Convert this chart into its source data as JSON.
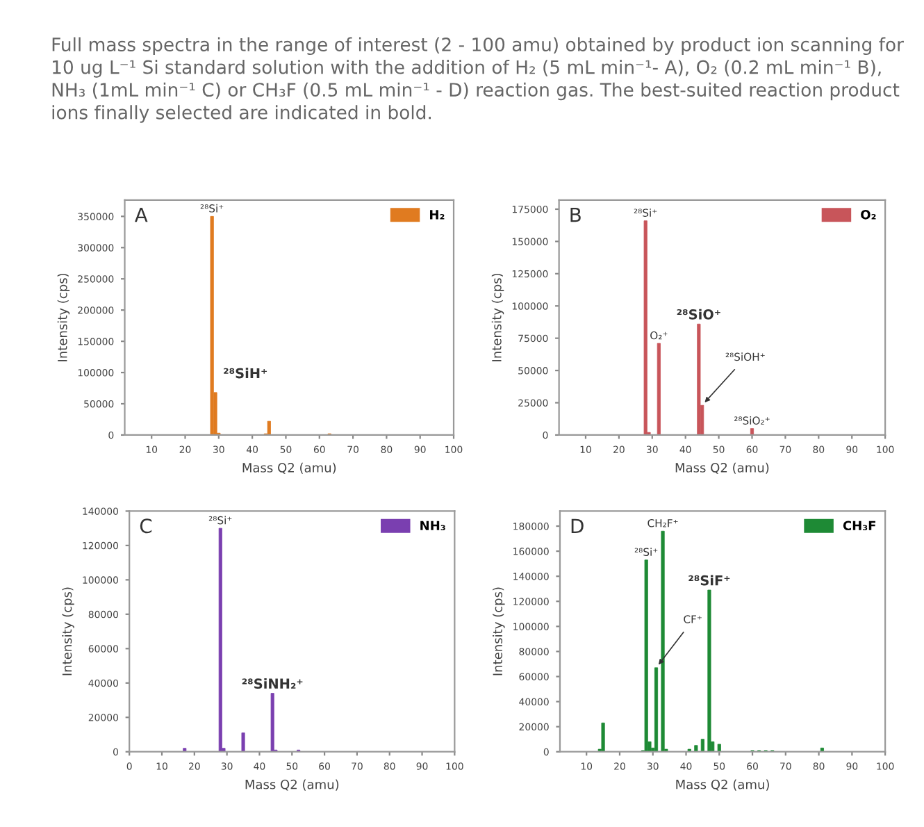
{
  "chart_data": [
    {
      "type": "bar",
      "title": "Full mass spectra in the range of interest (2 - 100 amu) obtained by product ion scanning for 10 ug L⁻¹ Si standard solution with the addition of H₂ (5 mL min⁻¹- A), O₂ (0.2 mL min⁻¹ B), NH₃ (1mL min⁻¹ C) or CH₃F (0.5 mL min⁻¹ - D) reaction gas. The best-suited reaction product ions finally selected are indicated in bold.",
      "x": [
        28,
        29,
        30,
        44,
        45,
        63
      ],
      "series": [
        {
          "name": "H₂",
          "color": "#e07b20",
          "values": [
            350000,
            68000,
            3000,
            2000,
            22000,
            2000
          ]
        }
      ],
      "xlim": [
        2,
        100
      ],
      "xticks": [
        10,
        20,
        30,
        40,
        50,
        60,
        70,
        80,
        90,
        100
      ],
      "ylim": [
        0,
        376000
      ],
      "yticks": [
        0,
        50000,
        100000,
        150000,
        200000,
        250000,
        300000,
        350000
      ],
      "xlabel": "Mass Q2 (amu)",
      "ylabel": "Intensity (cps)",
      "legend": "top right",
      "annotations": [
        "A",
        {
          "text": "²⁸Si⁺",
          "x": 28,
          "y": 350000
        },
        {
          "text": "²⁸SiH⁺",
          "x": 29,
          "y": 68000
        }
      ]
    },
    {
      "type": "bar",
      "x": [
        28,
        29,
        32,
        44,
        45,
        60
      ],
      "series": [
        {
          "name": "O₂",
          "color": "#c8555a",
          "values": [
            166000,
            2000,
            71000,
            86000,
            23000,
            5000
          ]
        }
      ],
      "xlim": [
        2,
        100
      ],
      "xticks": [
        10,
        20,
        30,
        40,
        50,
        60,
        70,
        80,
        90,
        100
      ],
      "ylim": [
        0,
        182000
      ],
      "yticks": [
        0,
        25000,
        50000,
        75000,
        100000,
        125000,
        150000,
        175000
      ],
      "xlabel": "Mass Q2 (amu)",
      "ylabel": "Intensity (cps)",
      "legend": "top right",
      "annotations": [
        "B",
        {
          "text": "²⁸Si⁺",
          "x": 28,
          "y": 166000
        },
        {
          "text": "O₂⁺",
          "x": 32,
          "y": 71000
        },
        {
          "text": "²⁸SiO⁺",
          "x": 44,
          "y": 86000
        },
        {
          "text": "²⁸SiOH⁺",
          "x": 45,
          "y": 23000
        },
        {
          "text": "²⁸SiO₂⁺",
          "x": 60,
          "y": 5000
        }
      ]
    },
    {
      "type": "bar",
      "x": [
        17,
        28,
        29,
        35,
        44,
        45,
        52
      ],
      "series": [
        {
          "name": "NH₃",
          "color": "#7a3fb0",
          "values": [
            2000,
            130000,
            2000,
            11000,
            34000,
            1000,
            1000
          ]
        }
      ],
      "xlim": [
        0,
        100
      ],
      "xticks": [
        0,
        10,
        20,
        30,
        40,
        50,
        60,
        70,
        80,
        90,
        100
      ],
      "ylim": [
        0,
        140000
      ],
      "yticks": [
        0,
        20000,
        40000,
        60000,
        80000,
        100000,
        120000,
        140000
      ],
      "xlabel": "Mass Q2 (amu)",
      "ylabel": "Intensity (cps)",
      "legend": "top right",
      "annotations": [
        "C",
        {
          "text": "²⁸Si⁺",
          "x": 28,
          "y": 130000
        },
        {
          "text": "²⁸SiNH₂⁺",
          "x": 44,
          "y": 34000
        }
      ]
    },
    {
      "type": "bar",
      "x": [
        14,
        15,
        27,
        28,
        29,
        30,
        31,
        33,
        34,
        41,
        43,
        45,
        47,
        48,
        50,
        60,
        62,
        64,
        66,
        81
      ],
      "series": [
        {
          "name": "CH₃F",
          "color": "#1e8a35",
          "values": [
            2000,
            23000,
            1000,
            153000,
            8000,
            3000,
            67000,
            176000,
            2000,
            2000,
            5000,
            10000,
            129000,
            8000,
            6000,
            1000,
            1000,
            1000,
            1000,
            3000
          ]
        }
      ],
      "xlim": [
        2,
        100
      ],
      "xticks": [
        10,
        20,
        30,
        40,
        50,
        60,
        70,
        80,
        90,
        100
      ],
      "ylim": [
        0,
        192000
      ],
      "yticks": [
        0,
        20000,
        40000,
        60000,
        80000,
        100000,
        120000,
        140000,
        160000,
        180000
      ],
      "xlabel": "Mass Q2 (amu)",
      "ylabel": "Intensity (cps)",
      "legend": "top right",
      "annotations": [
        "D",
        {
          "text": "²⁸Si⁺",
          "x": 28,
          "y": 153000
        },
        {
          "text": "CH₂F⁺",
          "x": 33,
          "y": 176000
        },
        {
          "text": "CF⁺",
          "x": 31,
          "y": 67000
        },
        {
          "text": "²⁸SiF⁺",
          "x": 47,
          "y": 129000
        }
      ]
    }
  ]
}
